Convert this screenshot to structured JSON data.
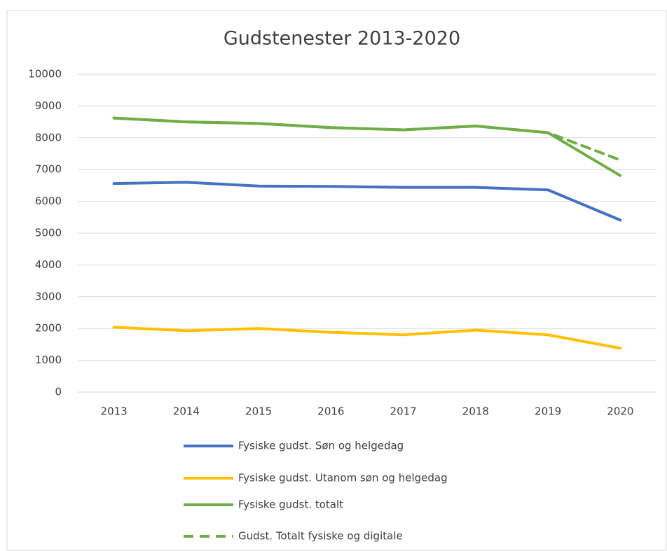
{
  "chart_data": {
    "type": "line",
    "title": "Gudstenester  2013-2020",
    "categories": [
      "2013",
      "2014",
      "2015",
      "2016",
      "2017",
      "2018",
      "2019",
      "2020"
    ],
    "series": [
      {
        "name": "Fysiske gudst. Søn og helgedag",
        "color": "#4472c4",
        "values": [
          6560,
          6600,
          6480,
          6470,
          6440,
          6440,
          6360,
          5410
        ]
      },
      {
        "name": "Fysiske gudst. Utanom søn og helgedag",
        "color": "#ffc000",
        "values": [
          2040,
          1930,
          2000,
          1880,
          1800,
          1950,
          1800,
          1380
        ]
      },
      {
        "name": "Fysiske gudst. totalt",
        "color": "#70ad47",
        "values": [
          8620,
          8500,
          8450,
          8320,
          8250,
          8370,
          8160,
          6810
        ]
      },
      {
        "name": "Gudst. Totalt fysiske og digitale",
        "color": "#70ad47",
        "dashed": true,
        "values": [
          8620,
          8500,
          8450,
          8320,
          8250,
          8370,
          8160,
          7300
        ]
      }
    ],
    "ylim": [
      0,
      10000
    ],
    "yticks": [
      0,
      1000,
      2000,
      3000,
      4000,
      5000,
      6000,
      7000,
      8000,
      9000,
      10000
    ],
    "grid": true,
    "legend": "bottom"
  }
}
